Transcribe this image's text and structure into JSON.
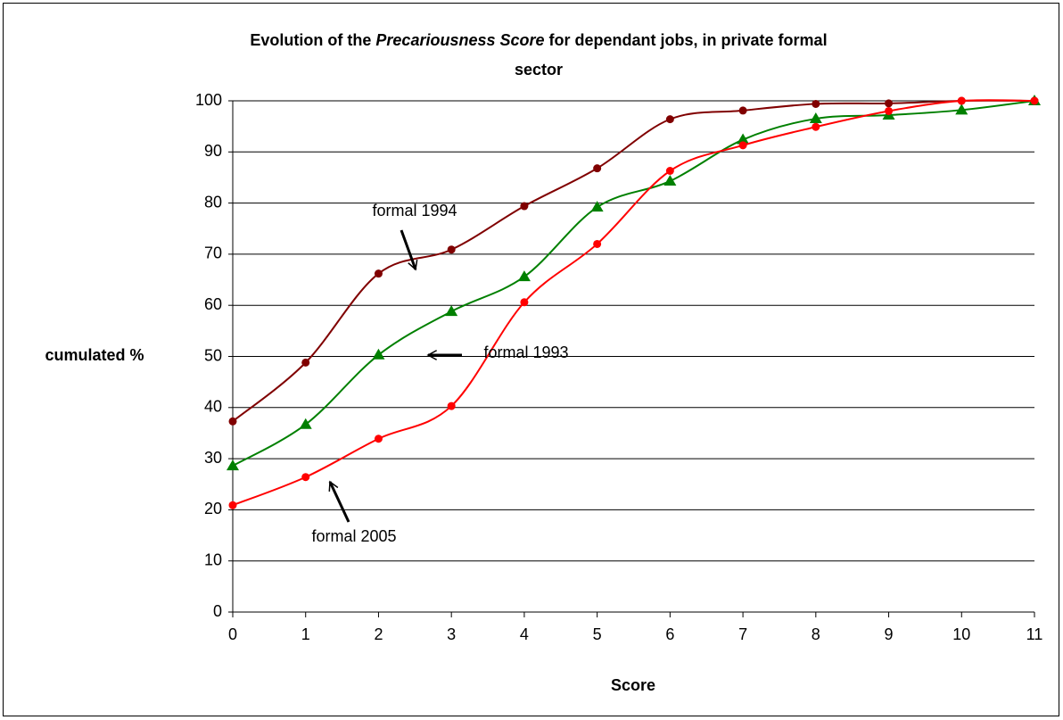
{
  "chart_data": {
    "type": "line",
    "title_parts": [
      "Evolution of the",
      "Precariousness Score",
      "for dependant jobs, in private formal",
      "sector"
    ],
    "x_label": "Score",
    "y_label": "cumulated %",
    "x": [
      0,
      1,
      2,
      3,
      4,
      5,
      6,
      7,
      8,
      9,
      10,
      11
    ],
    "series": [
      {
        "name": "formal 1994",
        "color": "#800000",
        "marker": "circle",
        "values": [
          37.3,
          48.8,
          66.2,
          70.9,
          79.4,
          86.8,
          96.4,
          98.1,
          99.4,
          99.5,
          100,
          100
        ]
      },
      {
        "name": "formal 1993",
        "color": "#008000",
        "marker": "triangle",
        "values": [
          28.6,
          36.7,
          50.3,
          58.8,
          65.6,
          79.2,
          84.3,
          92.4,
          96.5,
          97.2,
          98.2,
          100
        ]
      },
      {
        "name": "formal 2005",
        "color": "#ff0000",
        "marker": "circle",
        "values": [
          20.9,
          26.4,
          33.9,
          40.3,
          60.6,
          72.0,
          86.3,
          91.3,
          94.9,
          98.0,
          100,
          100
        ]
      }
    ],
    "xlim": [
      0,
      11
    ],
    "xticks": [
      0,
      1,
      2,
      3,
      4,
      5,
      6,
      7,
      8,
      9,
      10,
      11
    ],
    "ylim": [
      0,
      100
    ],
    "yticks": [
      0,
      10,
      20,
      30,
      40,
      50,
      60,
      70,
      80,
      90,
      100
    ],
    "grid": true
  }
}
